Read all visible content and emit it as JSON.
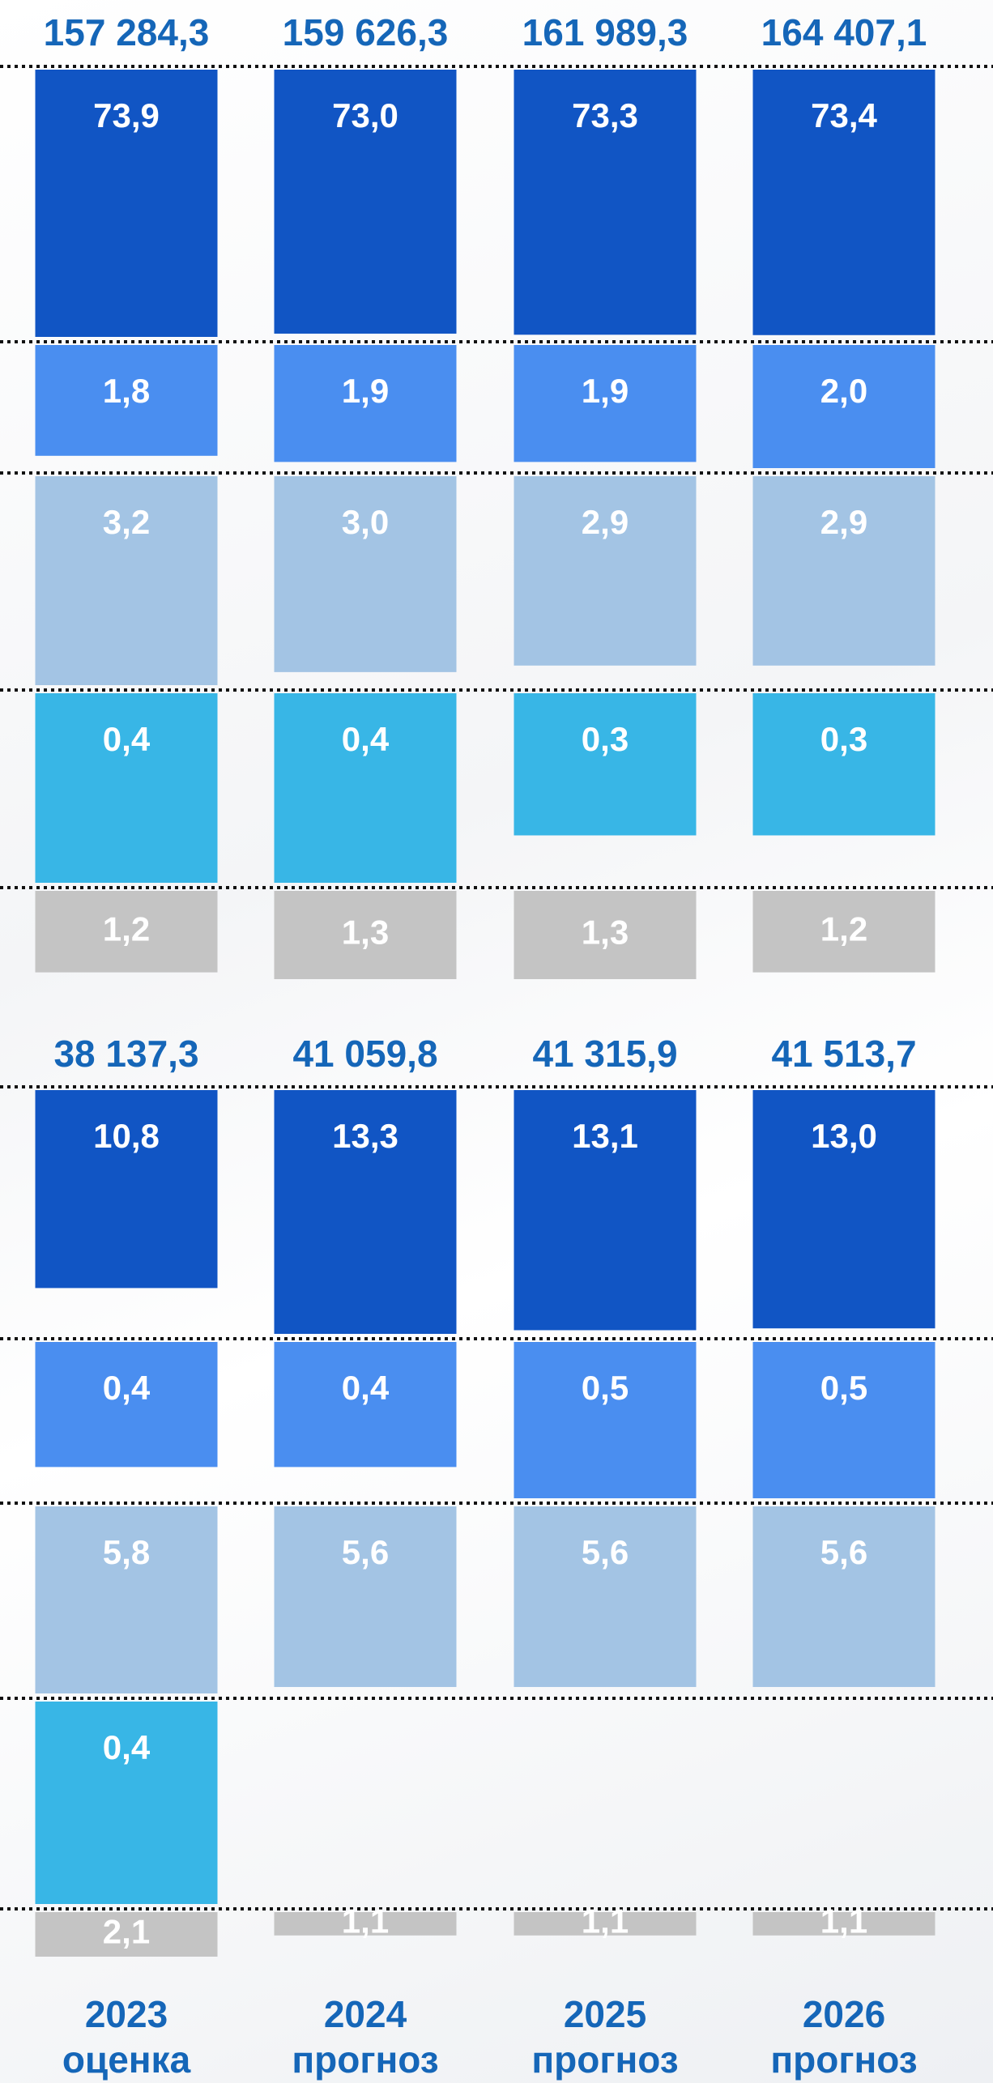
{
  "chart_data": [
    {
      "type": "bar",
      "totals": [
        157284.3,
        159626.3,
        161989.3,
        164407.1
      ],
      "total_labels": [
        "157 284,3",
        "159 626,3",
        "161 989,3",
        "164 407,1"
      ],
      "series": [
        {
          "color": "#1155c4",
          "values": [
            73.9,
            73.0,
            73.3,
            73.4
          ],
          "value_labels": [
            "73,9",
            "73,0",
            "73,3",
            "73,4"
          ]
        },
        {
          "color": "#4a8ef0",
          "values": [
            1.8,
            1.9,
            1.9,
            2.0
          ],
          "value_labels": [
            "1,8",
            "1,9",
            "1,9",
            "2,0"
          ]
        },
        {
          "color": "#a3c4e4",
          "values": [
            3.2,
            3.0,
            2.9,
            2.9
          ],
          "value_labels": [
            "3,2",
            "3,0",
            "2,9",
            "2,9"
          ]
        },
        {
          "color": "#38b6e6",
          "values": [
            0.4,
            0.4,
            0.3,
            0.3
          ],
          "value_labels": [
            "0,4",
            "0,4",
            "0,3",
            "0,3"
          ]
        },
        {
          "color": "#c4c4c4",
          "values": [
            1.2,
            1.3,
            1.3,
            1.2
          ],
          "value_labels": [
            "1,2",
            "1,3",
            "1,3",
            "1,2"
          ]
        }
      ]
    },
    {
      "type": "bar",
      "categories": [
        "2023",
        "2024",
        "2025",
        "2026"
      ],
      "category_notes": [
        "оценка",
        "прогноз",
        "прогноз",
        "прогноз"
      ],
      "totals": [
        38137.3,
        41059.8,
        41315.9,
        41513.7
      ],
      "total_labels": [
        "38 137,3",
        "41 059,8",
        "41 315,9",
        "41 513,7"
      ],
      "series": [
        {
          "color": "#1155c4",
          "values": [
            10.8,
            13.3,
            13.1,
            13.0
          ],
          "value_labels": [
            "10,8",
            "13,3",
            "13,1",
            "13,0"
          ]
        },
        {
          "color": "#4a8ef0",
          "values": [
            0.4,
            0.4,
            0.5,
            0.5
          ],
          "value_labels": [
            "0,4",
            "0,4",
            "0,5",
            "0,5"
          ]
        },
        {
          "color": "#a3c4e4",
          "values": [
            5.8,
            5.6,
            5.6,
            5.6
          ],
          "value_labels": [
            "5,8",
            "5,6",
            "5,6",
            "5,6"
          ]
        },
        {
          "color": "#38b6e6",
          "values": [
            0.4,
            null,
            null,
            null
          ],
          "value_labels": [
            "0,4",
            null,
            null,
            null
          ]
        },
        {
          "color": "#c4c4c4",
          "values": [
            2.1,
            1.1,
            1.1,
            1.1
          ],
          "value_labels": [
            "2,1",
            "1,1",
            "1,1",
            "1,1"
          ]
        }
      ]
    }
  ]
}
